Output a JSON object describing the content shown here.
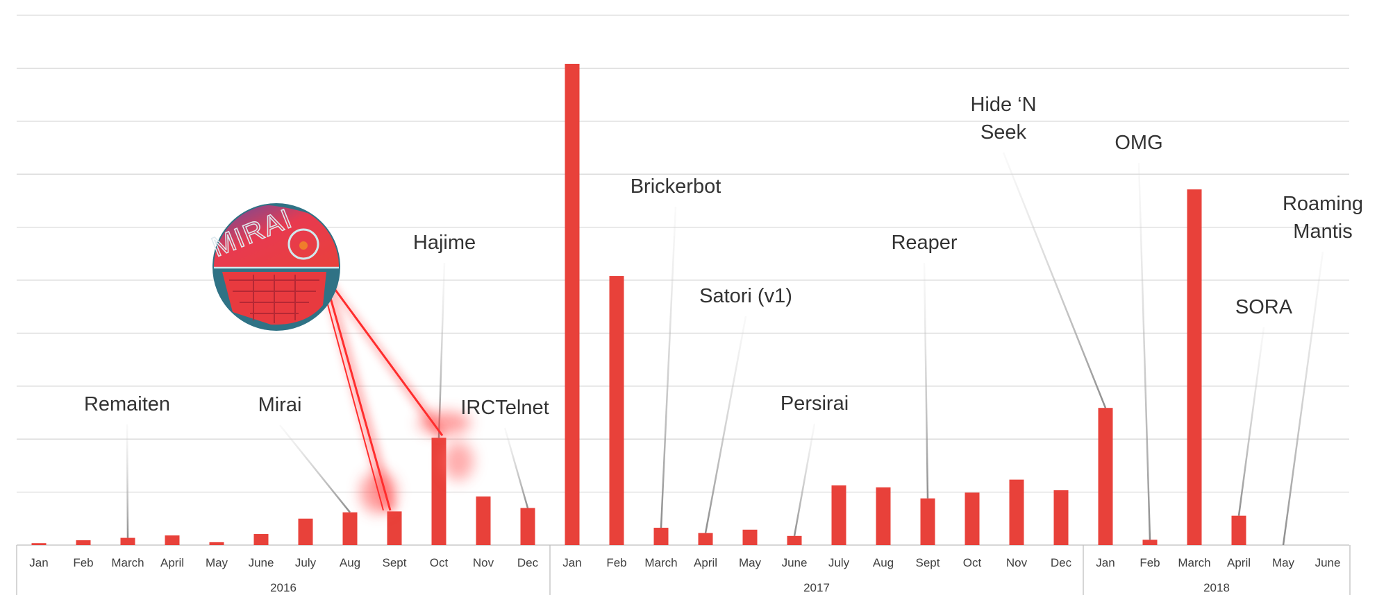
{
  "chart_data": {
    "type": "bar",
    "title": "",
    "xlabel": "",
    "ylabel": "",
    "ylim": [
      0,
      100
    ],
    "grid": true,
    "legend": "none",
    "bar_color": "#e8413a",
    "groups": [
      {
        "year": "2016",
        "months": [
          "Jan",
          "Feb",
          "March",
          "April",
          "May",
          "June",
          "July",
          "Aug",
          "Sept",
          "Oct",
          "Nov",
          "Dec"
        ]
      },
      {
        "year": "2017",
        "months": [
          "Jan",
          "Feb",
          "March",
          "April",
          "May",
          "June",
          "July",
          "Aug",
          "Sept",
          "Oct",
          "Nov",
          "Dec"
        ]
      },
      {
        "year": "2018",
        "months": [
          "Jan",
          "Feb",
          "March",
          "April",
          "May",
          "June"
        ]
      }
    ],
    "values": [
      0.4,
      1.0,
      1.5,
      2.0,
      0.6,
      2.3,
      5.5,
      6.8,
      7.0,
      22.3,
      10.1,
      7.7,
      100,
      55.9,
      3.6,
      2.5,
      3.2,
      1.9,
      12.4,
      12.0,
      9.7,
      10.9,
      13.6,
      11.4,
      28.5,
      1.1,
      73.9,
      6.1,
      0,
      0
    ],
    "annotations": [
      {
        "lines": [
          "Remaiten"
        ],
        "index": 2
      },
      {
        "lines": [
          "Mirai"
        ],
        "index": 7
      },
      {
        "lines": [
          "Hajime"
        ],
        "index": 9
      },
      {
        "lines": [
          "IRCTelnet"
        ],
        "index": 11
      },
      {
        "lines": [
          "Brickerbot"
        ],
        "index": 14
      },
      {
        "lines": [
          "Satori (v1)"
        ],
        "index": 15
      },
      {
        "lines": [
          "Persirai"
        ],
        "index": 17
      },
      {
        "lines": [
          "Reaper"
        ],
        "index": 20
      },
      {
        "lines": [
          "Hide ‘N",
          "Seek"
        ],
        "index": 24
      },
      {
        "lines": [
          "OMG"
        ],
        "index": 25
      },
      {
        "lines": [
          "SORA"
        ],
        "index": 27
      },
      {
        "lines": [
          "Roaming",
          "Mantis"
        ],
        "index": 28
      }
    ],
    "logo": {
      "text": "MIRAI"
    }
  }
}
